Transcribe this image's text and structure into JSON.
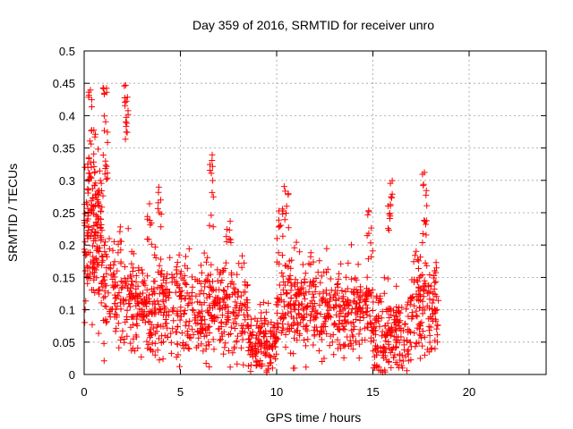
{
  "chart_data": {
    "type": "scatter",
    "title": "Day 359 of 2016, SRMTID for receiver unro",
    "xlabel": "GPS time / hours",
    "ylabel": "SRMTID / TECUs",
    "xlim": [
      0,
      24
    ],
    "ylim": [
      0,
      0.5
    ],
    "x_ticks": [
      0,
      5,
      10,
      15,
      20
    ],
    "y_ticks": [
      0,
      0.05,
      0.1,
      0.15,
      0.2,
      0.25,
      0.3,
      0.35,
      0.4,
      0.45,
      0.5
    ],
    "x_tick_labels": [
      "0",
      "5",
      "10",
      "15",
      "20"
    ],
    "y_tick_labels": [
      "0",
      "0.05",
      "0.1",
      "0.15",
      "0.2",
      "0.25",
      "0.3",
      "0.35",
      "0.4",
      "0.45",
      "0.5"
    ],
    "grid": true,
    "marker": "+",
    "marker_color": "#ff0000",
    "series": [
      {
        "name": "SRMTID",
        "segments": [
          {
            "x_start": 0.0,
            "x_end": 1.0,
            "mean": 0.2,
            "spread": 0.07,
            "count": 160
          },
          {
            "x_start": 1.0,
            "x_end": 2.5,
            "mean": 0.13,
            "spread": 0.05,
            "count": 130
          },
          {
            "x_start": 2.5,
            "x_end": 5.0,
            "mean": 0.11,
            "spread": 0.05,
            "count": 230
          },
          {
            "x_start": 5.0,
            "x_end": 8.5,
            "mean": 0.1,
            "spread": 0.05,
            "count": 300
          },
          {
            "x_start": 8.5,
            "x_end": 10.0,
            "mean": 0.05,
            "spread": 0.035,
            "count": 140
          },
          {
            "x_start": 10.0,
            "x_end": 12.0,
            "mean": 0.11,
            "spread": 0.05,
            "count": 190
          },
          {
            "x_start": 12.0,
            "x_end": 15.0,
            "mean": 0.1,
            "spread": 0.045,
            "count": 250
          },
          {
            "x_start": 15.0,
            "x_end": 17.0,
            "mean": 0.06,
            "spread": 0.045,
            "count": 190
          },
          {
            "x_start": 17.0,
            "x_end": 18.4,
            "mean": 0.1,
            "spread": 0.05,
            "count": 130
          }
        ],
        "spikes": [
          {
            "x": 0.3,
            "y_min": 0.25,
            "y_max": 0.46,
            "count": 22
          },
          {
            "x": 0.6,
            "y_min": 0.22,
            "y_max": 0.38,
            "count": 12
          },
          {
            "x": 1.1,
            "y_min": 0.3,
            "y_max": 0.455,
            "count": 20
          },
          {
            "x": 2.2,
            "y_min": 0.36,
            "y_max": 0.45,
            "count": 16
          },
          {
            "x": 3.4,
            "y_min": 0.2,
            "y_max": 0.28,
            "count": 8
          },
          {
            "x": 3.9,
            "y_min": 0.22,
            "y_max": 0.29,
            "count": 8
          },
          {
            "x": 6.6,
            "y_min": 0.22,
            "y_max": 0.35,
            "count": 12
          },
          {
            "x": 7.5,
            "y_min": 0.18,
            "y_max": 0.245,
            "count": 8
          },
          {
            "x": 10.2,
            "y_min": 0.18,
            "y_max": 0.27,
            "count": 12
          },
          {
            "x": 10.5,
            "y_min": 0.22,
            "y_max": 0.3,
            "count": 8
          },
          {
            "x": 14.8,
            "y_min": 0.18,
            "y_max": 0.26,
            "count": 8
          },
          {
            "x": 15.9,
            "y_min": 0.22,
            "y_max": 0.33,
            "count": 14
          },
          {
            "x": 17.7,
            "y_min": 0.2,
            "y_max": 0.33,
            "count": 14
          }
        ]
      }
    ]
  }
}
